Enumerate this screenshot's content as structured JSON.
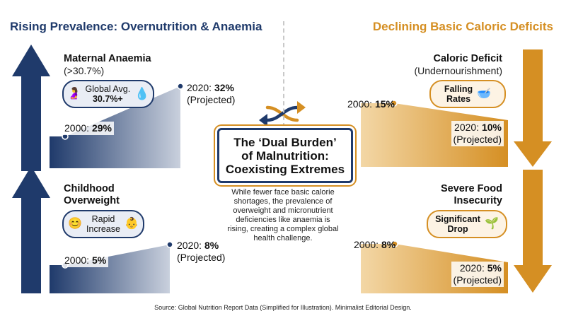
{
  "left": {
    "heading": "Rising Prevalence: Overnutrition & Anaemia",
    "anaemia": {
      "title": "Maternal Anaemia",
      "subtitle": "(>30.7%)",
      "badge_line1": "Global Avg.",
      "badge_line2": "30.7%+",
      "start_label": "2000: ",
      "start_value": "29%",
      "end_label": "2020: ",
      "end_value": "32%",
      "end_note": "(Projected)"
    },
    "overweight": {
      "title_line1": "Childhood",
      "title_line2": "Overweight",
      "badge_line1": "Rapid",
      "badge_line2": "Increase",
      "start_label": "2000: ",
      "start_value": "5%",
      "end_label": "2020: ",
      "end_value": "8%",
      "end_note": "(Projected)"
    }
  },
  "right": {
    "heading": "Declining Basic Caloric Deficits",
    "caloric": {
      "title": "Caloric Deficit",
      "subtitle": "(Undernourishment)",
      "badge_line1": "Falling",
      "badge_line2": "Rates",
      "start_label": "2000: ",
      "start_value": "15%",
      "end_label": "2020: ",
      "end_value": "10%",
      "end_note": "(Projected)"
    },
    "food": {
      "title_line1": "Severe Food",
      "title_line2": "Insecurity",
      "badge_line1": "Significant",
      "badge_line2": "Drop",
      "start_label": "2000: ",
      "start_value": "8%",
      "end_label": "2020: ",
      "end_value": "5%",
      "end_note": "(Projected)"
    }
  },
  "center": {
    "title_line1": "The ‘Dual Burden’",
    "title_line2": "of Malnutrition:",
    "title_line3": "Coexisting Extremes",
    "description": "While fewer face basic calorie shortages, the prevalence of overweight and micronutrient deficiencies like anaemia is rising, creating a complex global health challenge."
  },
  "source": "Source: Global Nutrition Report Data (Simplified for Illustration). Minimalist Editorial Design.",
  "colors": {
    "navy": "#1f3a6b",
    "orange": "#d58f23"
  },
  "chart_data": [
    {
      "type": "area",
      "series": [
        {
          "name": "Maternal Anaemia",
          "x": [
            2000,
            2020
          ],
          "values": [
            29,
            32
          ]
        }
      ]
    },
    {
      "type": "area",
      "series": [
        {
          "name": "Childhood Overweight",
          "x": [
            2000,
            2020
          ],
          "values": [
            5,
            8
          ]
        }
      ]
    },
    {
      "type": "area",
      "series": [
        {
          "name": "Caloric Deficit",
          "x": [
            2000,
            2020
          ],
          "values": [
            15,
            10
          ]
        }
      ]
    },
    {
      "type": "area",
      "series": [
        {
          "name": "Severe Food Insecurity",
          "x": [
            2000,
            2020
          ],
          "values": [
            8,
            5
          ]
        }
      ]
    }
  ]
}
